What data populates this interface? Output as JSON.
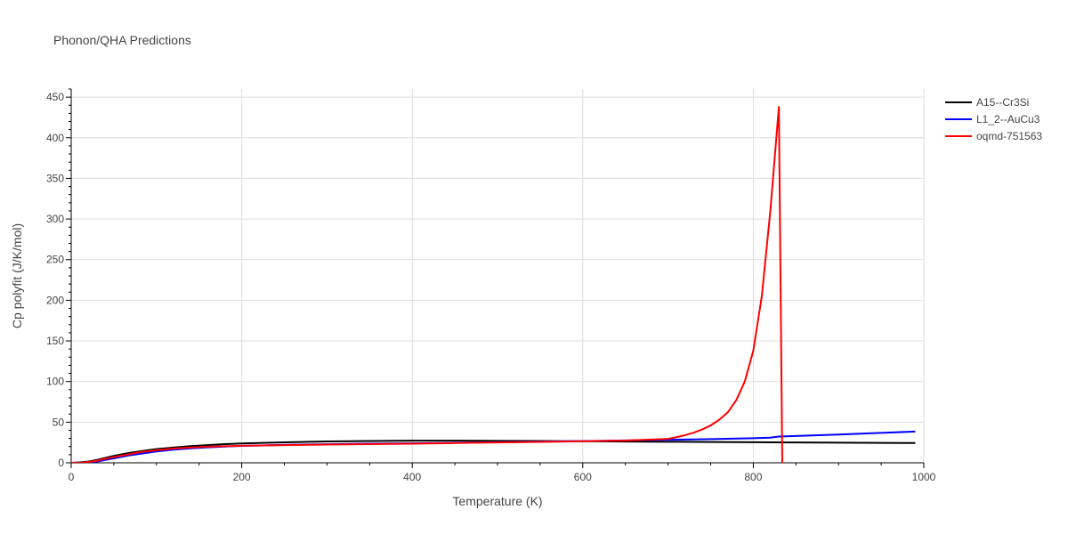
{
  "chart_data": {
    "type": "line",
    "title": "Phonon/QHA Predictions",
    "xlabel": "Temperature (K)",
    "ylabel": "Cp polyfit (J/K/mol)",
    "xlim": [
      0,
      1000
    ],
    "ylim": [
      0,
      460
    ],
    "xticks": [
      0,
      200,
      400,
      600,
      800,
      1000
    ],
    "yticks": [
      0,
      50,
      100,
      150,
      200,
      250,
      300,
      350,
      400,
      450
    ],
    "grid": true,
    "legend_position": "top-right",
    "series": [
      {
        "name": "A15--Cr3Si",
        "color": "#000000",
        "x": [
          0,
          10,
          20,
          30,
          40,
          50,
          60,
          70,
          80,
          90,
          100,
          120,
          140,
          160,
          180,
          200,
          250,
          300,
          350,
          400,
          450,
          500,
          550,
          600,
          650,
          700,
          750,
          800,
          850,
          900,
          950,
          990
        ],
        "y": [
          0,
          0.5,
          1.5,
          3.5,
          6,
          8.5,
          10.5,
          12.5,
          14,
          15.5,
          16.8,
          18.8,
          20.5,
          21.8,
          23,
          23.8,
          25.2,
          26.3,
          26.9,
          27.2,
          27.2,
          27,
          26.8,
          26.5,
          26.2,
          25.9,
          25.6,
          25.3,
          25,
          24.8,
          24.5,
          24.3
        ]
      },
      {
        "name": "L1_2--AuCu3",
        "color": "#0000ff",
        "x": [
          0,
          10,
          20,
          30,
          40,
          50,
          60,
          70,
          80,
          90,
          100,
          120,
          140,
          160,
          180,
          200,
          250,
          300,
          350,
          400,
          450,
          500,
          550,
          600,
          650,
          700,
          750,
          800,
          820,
          830,
          850,
          900,
          950,
          990
        ],
        "y": [
          0,
          0,
          0.5,
          1.5,
          3.5,
          5.5,
          7.5,
          9.5,
          11,
          12.5,
          14,
          16.2,
          17.8,
          19,
          20,
          20.8,
          22,
          22.8,
          23.5,
          24,
          24.6,
          25.3,
          26,
          26.7,
          27.5,
          28.3,
          29.2,
          30.3,
          31,
          32.3,
          33,
          34.8,
          36.8,
          38.5
        ]
      },
      {
        "name": "oqmd-751563",
        "color": "#ff0000",
        "x": [
          0,
          10,
          20,
          30,
          40,
          50,
          60,
          70,
          80,
          90,
          100,
          120,
          140,
          160,
          180,
          200,
          250,
          300,
          350,
          400,
          450,
          500,
          550,
          600,
          650,
          700,
          710,
          720,
          730,
          740,
          750,
          760,
          770,
          780,
          790,
          800,
          810,
          820,
          830,
          834
        ],
        "y": [
          0,
          0,
          1,
          2.5,
          5,
          7,
          9,
          11,
          13,
          14.2,
          15.5,
          17.5,
          18.8,
          19.8,
          20.4,
          20.9,
          21.8,
          22.4,
          23,
          23.6,
          24.3,
          25,
          25.7,
          26.5,
          27.4,
          29.5,
          31.5,
          34,
          37,
          41,
          46,
          53,
          62,
          77,
          100,
          138,
          205,
          310,
          438,
          0
        ]
      }
    ]
  }
}
